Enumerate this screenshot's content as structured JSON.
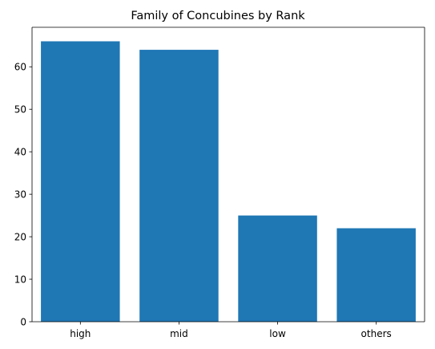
{
  "chart_data": {
    "type": "bar",
    "title": "Family of Concubines by Rank",
    "xlabel": "",
    "ylabel": "",
    "categories": [
      "high",
      "mid",
      "low",
      "others"
    ],
    "values": [
      66,
      64,
      25,
      22
    ],
    "ylim": [
      0,
      69.3
    ],
    "yticks": [
      0,
      10,
      20,
      30,
      40,
      50,
      60
    ],
    "bar_color": "#1f77b4",
    "grid": false,
    "legend": "none"
  }
}
